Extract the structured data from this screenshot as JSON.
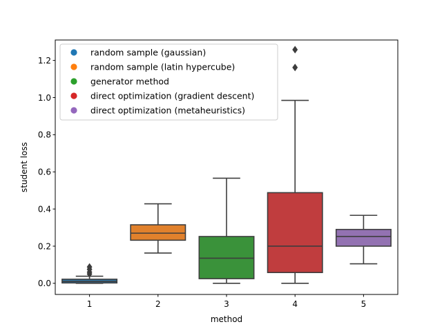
{
  "chart_data": {
    "type": "box",
    "title": "",
    "xlabel": "method",
    "ylabel": "student loss",
    "categories": [
      "1",
      "2",
      "3",
      "4",
      "5"
    ],
    "ylim": [
      -0.06,
      1.31
    ],
    "yticks": [
      0.0,
      0.2,
      0.4,
      0.6,
      0.8,
      1.0,
      1.2
    ],
    "ytick_labels": [
      "0.0",
      "0.2",
      "0.4",
      "0.6",
      "0.8",
      "1.0",
      "1.2"
    ],
    "grid": false,
    "legend": {
      "placement": "top-left",
      "entries": [
        {
          "label": "random sample (gaussian)",
          "color": "#1f77b4"
        },
        {
          "label": "random sample (latin hypercube)",
          "color": "#ff7f0e"
        },
        {
          "label": "generator method",
          "color": "#2ca02c"
        },
        {
          "label": "direct optimization (gradient descent)",
          "color": "#d62728"
        },
        {
          "label": "direct optimization (metaheuristics)",
          "color": "#9467bd"
        }
      ]
    },
    "series": [
      {
        "category": "1",
        "color": "#3274a1",
        "whisker_low": 0.0,
        "q1": 0.002,
        "median": 0.01,
        "q3": 0.022,
        "whisker_high": 0.038,
        "outliers": [
          0.05,
          0.06,
          0.075,
          0.088
        ]
      },
      {
        "category": "2",
        "color": "#e1812c",
        "whisker_low": 0.163,
        "q1": 0.232,
        "median": 0.27,
        "q3": 0.315,
        "whisker_high": 0.428,
        "outliers": []
      },
      {
        "category": "3",
        "color": "#3a923a",
        "whisker_low": 0.0,
        "q1": 0.025,
        "median": 0.135,
        "q3": 0.252,
        "whisker_high": 0.566,
        "outliers": []
      },
      {
        "category": "4",
        "color": "#c03d3e",
        "whisker_low": 0.0,
        "q1": 0.058,
        "median": 0.2,
        "q3": 0.488,
        "whisker_high": 0.985,
        "outliers": [
          1.162,
          1.258
        ]
      },
      {
        "category": "5",
        "color": "#9372b2",
        "whisker_low": 0.105,
        "q1": 0.2,
        "median": 0.252,
        "q3": 0.29,
        "whisker_high": 0.366,
        "outliers": []
      }
    ]
  }
}
